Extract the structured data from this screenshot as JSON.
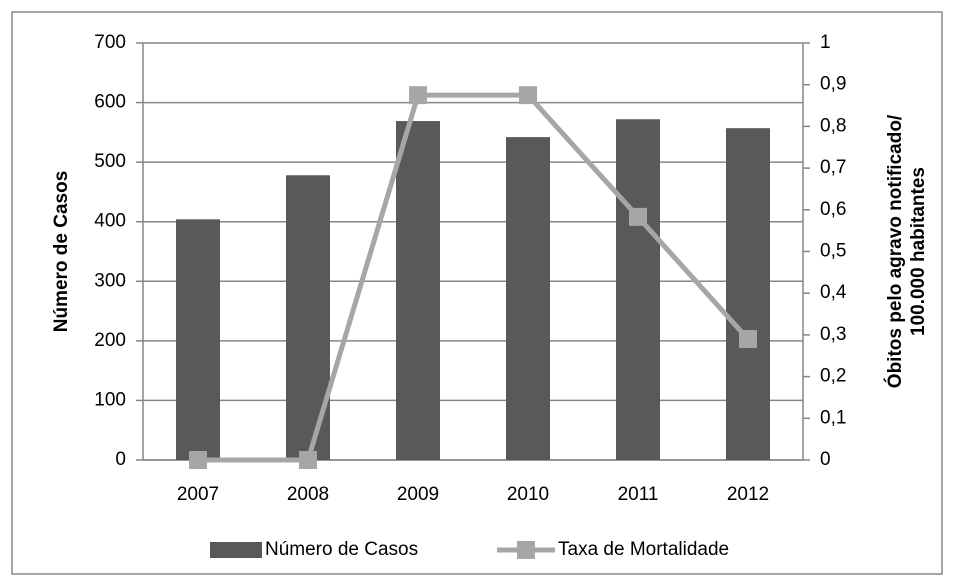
{
  "chart_data": {
    "type": "bar-line",
    "categories": [
      "2007",
      "2008",
      "2009",
      "2010",
      "2011",
      "2012"
    ],
    "series": [
      {
        "name": "Número de Casos",
        "type": "bar",
        "color": "#595959",
        "values": [
          404,
          478,
          569,
          542,
          572,
          557
        ]
      },
      {
        "name": "Taxa de Mortalidade",
        "type": "line",
        "axis": "y2",
        "color": "#a6a6a6",
        "values": [
          0,
          0,
          0.875,
          0.875,
          0.583,
          0.29
        ]
      }
    ],
    "ylabel": "Número de Casos",
    "y2label": [
      "Óbitos pelo agravo notificado/",
      "100.000 habitantes"
    ],
    "ylim": [
      0,
      700
    ],
    "yticks": [
      0,
      100,
      200,
      300,
      400,
      500,
      600,
      700
    ],
    "y2lim": [
      0,
      1
    ],
    "y2ticks": [
      0,
      {
        "value": 0.1,
        "label": "0,1"
      },
      {
        "value": 0.2,
        "label": "0,2"
      },
      {
        "value": 0.3,
        "label": "0,3"
      },
      {
        "value": 0.4,
        "label": "0,4"
      },
      {
        "value": 0.5,
        "label": "0,5"
      },
      {
        "value": 0.6,
        "label": "0,6"
      },
      {
        "value": 0.7,
        "label": "0,7"
      },
      {
        "value": 0.8,
        "label": "0,8"
      },
      {
        "value": 0.9,
        "label": "0,9"
      },
      1
    ],
    "grid": true,
    "legend": "bottom"
  }
}
